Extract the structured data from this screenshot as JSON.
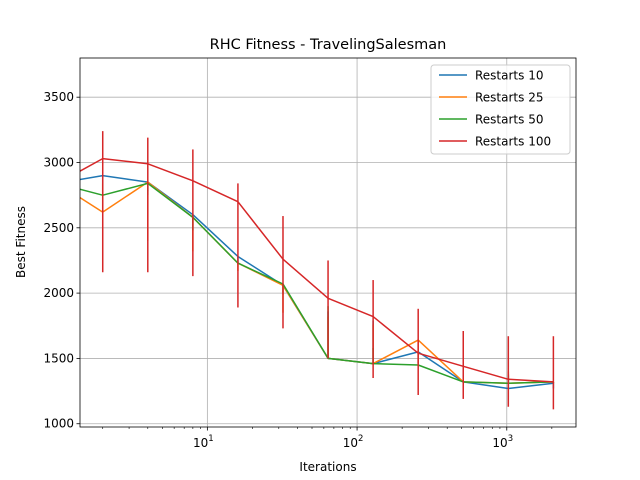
{
  "chart_data": {
    "type": "line",
    "title": "RHC Fitness - TravelingSalesman",
    "xlabel": "Iterations",
    "ylabel": "Best Fitness",
    "x_scale": "log",
    "xlim": [
      1.41,
      2900
    ],
    "ylim": [
      975,
      3800
    ],
    "grid": true,
    "legend_position": "top-right",
    "x_ticks": [
      {
        "value": 10,
        "base": "10",
        "exp": "1"
      },
      {
        "value": 100,
        "base": "10",
        "exp": "2"
      },
      {
        "value": 1000,
        "base": "10",
        "exp": "3"
      }
    ],
    "y_ticks": [
      1000,
      1500,
      2000,
      2500,
      3000,
      3500
    ],
    "x": [
      1,
      2,
      4,
      8,
      16,
      32,
      64,
      128,
      256,
      512,
      1024,
      2048
    ],
    "series": [
      {
        "name": "Restarts 10",
        "color": "#1f77b4",
        "values": [
          2840,
          2900,
          2850,
          2600,
          2280,
          2060,
          1500,
          1460,
          1550,
          1320,
          1270,
          1310
        ],
        "ranges": [
          [
            2840,
            2840
          ],
          [
            2840,
            2900
          ],
          [
            2780,
            2850
          ],
          [
            2580,
            2600
          ],
          [
            2220,
            2280
          ],
          [
            1990,
            2060
          ],
          [
            1500,
            1860
          ],
          [
            1460,
            1790
          ],
          [
            1460,
            1550
          ],
          [
            1320,
            1420
          ],
          [
            1270,
            1380
          ],
          [
            1270,
            1310
          ]
        ]
      },
      {
        "name": "Restarts 25",
        "color": "#ff7f0e",
        "values": [
          2840,
          2620,
          2850,
          2580,
          2230,
          2060,
          1500,
          1460,
          1640,
          1320,
          1310,
          1320
        ],
        "ranges": [
          [
            2840,
            2840
          ],
          [
            2620,
            2840
          ],
          [
            2400,
            2850
          ],
          [
            2320,
            2580
          ],
          [
            2170,
            2230
          ],
          [
            1850,
            2060
          ],
          [
            1500,
            1820
          ],
          [
            1460,
            1760
          ],
          [
            1460,
            1640
          ],
          [
            1320,
            1510
          ],
          [
            1310,
            1400
          ],
          [
            1310,
            1320
          ]
        ]
      },
      {
        "name": "Restarts 50",
        "color": "#2ca02c",
        "values": [
          2840,
          2750,
          2840,
          2580,
          2230,
          2070,
          1500,
          1460,
          1450,
          1320,
          1310,
          1320
        ],
        "ranges": [
          [
            2840,
            2840
          ],
          [
            2750,
            2840
          ],
          [
            2750,
            2840
          ],
          [
            2480,
            2580
          ],
          [
            2230,
            2230
          ],
          [
            2060,
            2070
          ],
          [
            1500,
            1900
          ],
          [
            1460,
            1580
          ],
          [
            1450,
            1450
          ],
          [
            1320,
            1450
          ],
          [
            1310,
            1370
          ],
          [
            1310,
            1320
          ]
        ]
      },
      {
        "name": "Restarts 100",
        "color": "#d62728",
        "values": [
          2840,
          3030,
          2990,
          2860,
          2700,
          2260,
          1960,
          1820,
          1540,
          1440,
          1340,
          1320
        ],
        "ranges": [
          [
            2840,
            2840
          ],
          [
            2160,
            3240
          ],
          [
            2160,
            3190
          ],
          [
            2130,
            3100
          ],
          [
            1890,
            2840
          ],
          [
            1730,
            2590
          ],
          [
            1500,
            2250
          ],
          [
            1350,
            2100
          ],
          [
            1220,
            1880
          ],
          [
            1190,
            1710
          ],
          [
            1130,
            1670
          ],
          [
            1110,
            1670
          ]
        ]
      }
    ]
  }
}
